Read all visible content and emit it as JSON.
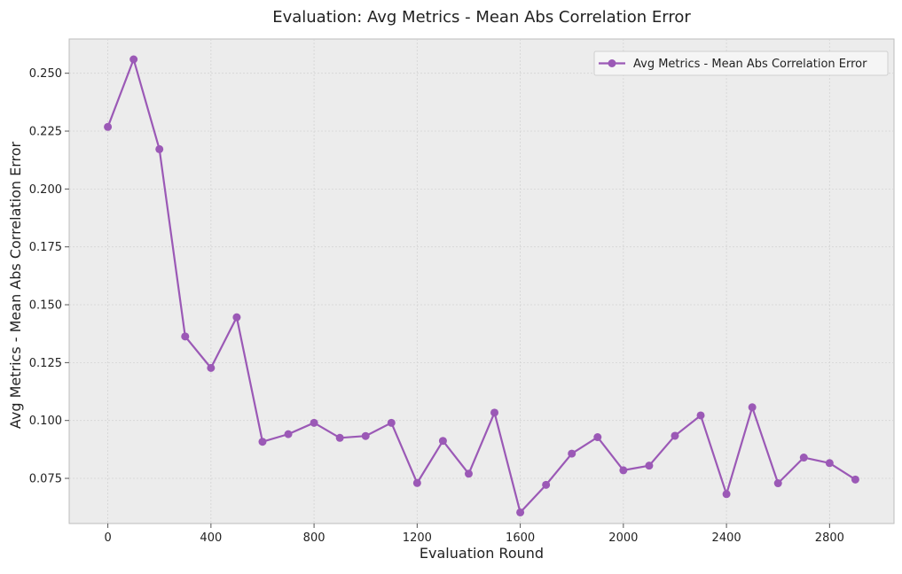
{
  "chart_data": {
    "type": "line",
    "title": "Evaluation: Avg Metrics - Mean Abs Correlation Error",
    "xlabel": "Evaluation Round",
    "ylabel": "Avg Metrics - Mean Abs Correlation Error",
    "xlim": [
      -150,
      3050
    ],
    "ylim": [
      0.0555,
      0.2648
    ],
    "x_ticks": [
      0,
      400,
      800,
      1200,
      1600,
      2000,
      2400,
      2800
    ],
    "y_ticks": [
      0.075,
      0.1,
      0.125,
      0.15,
      0.175,
      0.2,
      0.225,
      0.25
    ],
    "y_tick_labels": [
      "0.075",
      "0.100",
      "0.125",
      "0.150",
      "0.175",
      "0.200",
      "0.225",
      "0.250"
    ],
    "grid": true,
    "legend_position": "top-right",
    "series": [
      {
        "name": "Avg Metrics - Mean Abs Correlation Error",
        "color": "#9b59b6",
        "x": [
          0,
          100,
          200,
          300,
          400,
          500,
          600,
          700,
          800,
          900,
          1000,
          1100,
          1200,
          1300,
          1400,
          1500,
          1600,
          1700,
          1800,
          1900,
          2000,
          2100,
          2200,
          2300,
          2400,
          2500,
          2600,
          2700,
          2800,
          2900
        ],
        "y": [
          0.2268,
          0.256,
          0.2172,
          0.1363,
          0.1227,
          0.1446,
          0.0908,
          0.0941,
          0.099,
          0.0925,
          0.0933,
          0.099,
          0.073,
          0.0912,
          0.077,
          0.1034,
          0.0603,
          0.0722,
          0.0857,
          0.0928,
          0.0785,
          0.0805,
          0.0934,
          0.1022,
          0.0682,
          0.1057,
          0.0729,
          0.084,
          0.0816,
          0.0745
        ]
      }
    ]
  }
}
